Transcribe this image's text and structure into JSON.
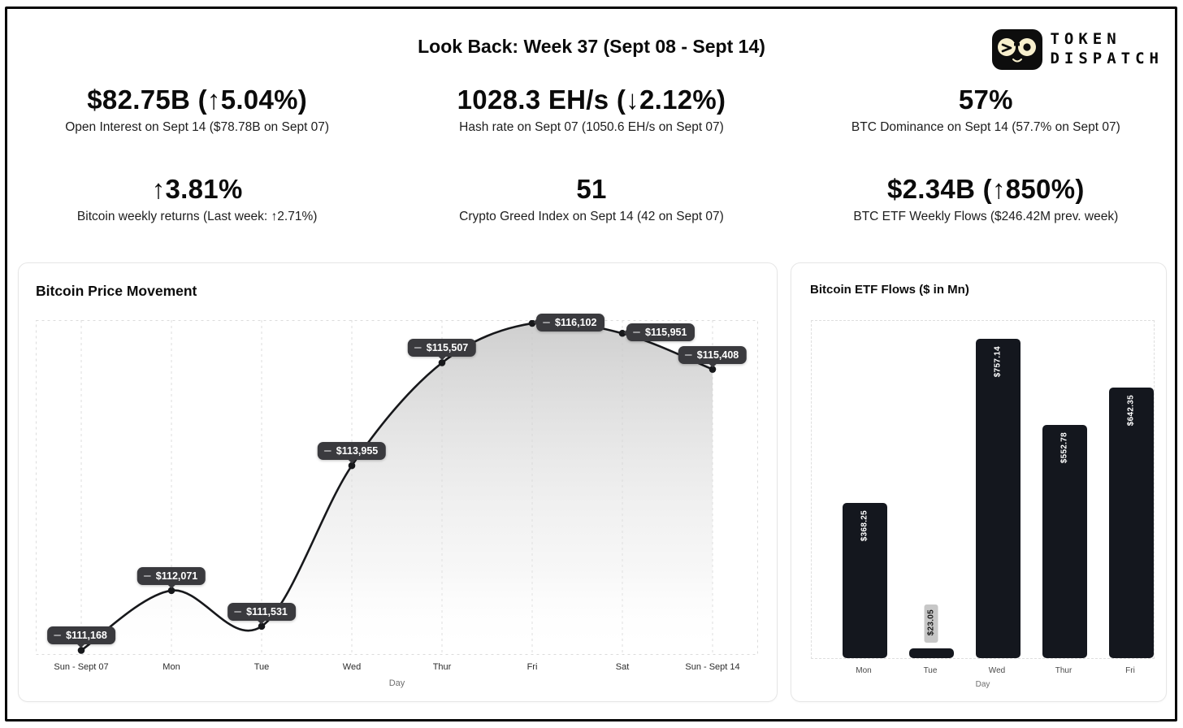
{
  "page": {
    "title": "Look Back: Week 37 (Sept 08 - Sept 14)",
    "logo": {
      "line1": "TOKEN",
      "line2": "DISPATCH"
    }
  },
  "stats": [
    {
      "value": "$82.75B (↑5.04%)",
      "label": "Open Interest on Sept 14 ($78.78B on Sept 07)"
    },
    {
      "value": "1028.3 EH/s (↓2.12%)",
      "label": "Hash rate on Sept 07 (1050.6 EH/s on Sept 07)"
    },
    {
      "value": "57%",
      "label": "BTC Dominance on Sept 14 (57.7% on Sept 07)"
    },
    {
      "value": "↑3.81%",
      "label": "Bitcoin weekly returns (Last week: ↑2.71%)"
    },
    {
      "value": "51",
      "label": "Crypto Greed Index on Sept 14 (42 on Sept 07)"
    },
    {
      "value": "$2.34B (↑850%)",
      "label": "BTC ETF Weekly Flows ($246.42M prev. week)"
    }
  ],
  "chart_data": [
    {
      "type": "line",
      "title": "Bitcoin Price Movement",
      "x": [
        "Sun - Sept 07",
        "Mon",
        "Tue",
        "Wed",
        "Thur",
        "Fri",
        "Sat",
        "Sun - Sept 14"
      ],
      "values": [
        111168,
        112071,
        111531,
        113955,
        115507,
        116102,
        115951,
        115408
      ],
      "point_labels": [
        "$111,168",
        "$112,071",
        "$111,531",
        "$113,955",
        "$115,507",
        "$116,102",
        "$115,951",
        "$115,408"
      ],
      "xlabel": "Day",
      "ylim": [
        111100,
        116150
      ],
      "grid": "vertical-dashed",
      "legend": "none",
      "line_color": "#17181b",
      "area_fill": "gray-gradient"
    },
    {
      "type": "bar",
      "title": "Bitcoin ETF Flows ($ in Mn)",
      "categories": [
        "Mon",
        "Tue",
        "Wed",
        "Thur",
        "Fri"
      ],
      "values": [
        368.25,
        23.05,
        757.14,
        552.78,
        642.35
      ],
      "bar_labels": [
        "$368.25",
        "$23.05",
        "$757.14",
        "$552.78",
        "$642.35"
      ],
      "xlabel": "Day",
      "ylim": [
        0,
        800
      ],
      "grid": "border-dashed",
      "legend": "none",
      "bar_color": "#14171e"
    }
  ],
  "colors": {
    "frame_border": "#060606",
    "card_border": "#e6e6e6",
    "grid_dash": "#dcdcdc",
    "line": "#17181b",
    "badge_bg": "#3a3a3e",
    "badge_text": "#ffffff",
    "bar": "#14171e",
    "small_bar_badge_bg": "#c7c7c7",
    "logo_cream": "#f7efcd"
  }
}
